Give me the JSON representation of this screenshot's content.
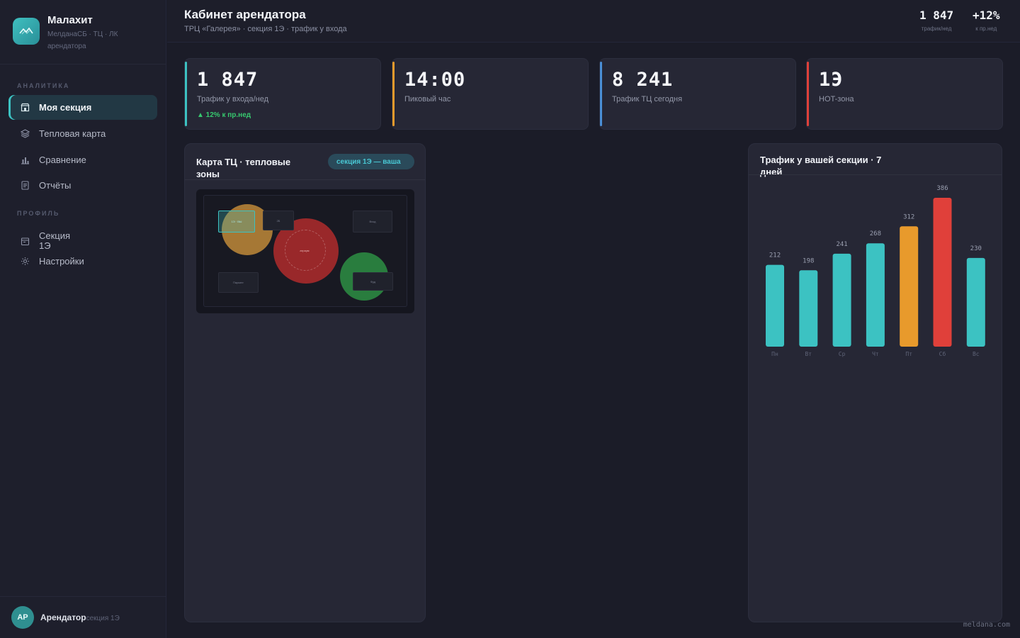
{
  "brand": {
    "name": "Малахит",
    "subtitle": "МелданаСБ · ТЦ · ЛК арендатора"
  },
  "sidebar": {
    "section_analytics": "АНАЛИТИКА",
    "section_profile": "ПРОФИЛЬ",
    "items": [
      {
        "label": "Моя секция",
        "icon": "store-icon",
        "active": true
      },
      {
        "label": "Тепловая карта",
        "icon": "layers-icon"
      },
      {
        "label": "Сравнение",
        "icon": "bar-chart-icon"
      },
      {
        "label": "Отчёты",
        "icon": "document-icon"
      },
      {
        "label": "Секция 1Э",
        "icon": "storefront-icon"
      },
      {
        "label": "Настройки",
        "icon": "gear-icon"
      }
    ],
    "user": {
      "initials": "АР",
      "name": "Арендатор",
      "section": "секция 1Э"
    }
  },
  "header": {
    "title": "Кабинет арендатора",
    "subtitle": "ТРЦ «Галерея» · секция 1Э · трафик у входа",
    "stats": [
      {
        "value": "1 847",
        "label": "трафик/нед"
      },
      {
        "value": "+12%",
        "label": "к пр.нед"
      }
    ]
  },
  "kpis": [
    {
      "value": "1 847",
      "label": "Трафик у входа/нед",
      "delta": "▲ 12% к пр.нед",
      "color": "#3cc2c2"
    },
    {
      "value": "14:00",
      "label": "Пиковый час",
      "color": "#e89a2c"
    },
    {
      "value": "8 241",
      "label": "Трафик ТЦ сегодня",
      "color": "#4a8fd6"
    },
    {
      "value": "1Э",
      "label": "HOT-зона",
      "color": "#e0403a"
    }
  ],
  "map_panel": {
    "title": "Карта ТЦ · тепловые зоны",
    "badge": "секция 1Э — ваша",
    "labels": {
      "yours": "1Э · ВЫ",
      "s2": "2Б",
      "entrance": "Вход",
      "center": "атриум",
      "parking": "Паркинг",
      "food": "Фуд"
    }
  },
  "chart_panel": {
    "title": "Трафик у вашей секции · 7 дней"
  },
  "chart_data": {
    "type": "bar",
    "title": "Трафик у вашей секции · 7 дней",
    "categories": [
      "Пн",
      "Вт",
      "Ср",
      "Чт",
      "Пт",
      "Сб",
      "Вс"
    ],
    "values": [
      212,
      198,
      241,
      268,
      312,
      386,
      230
    ],
    "colors": [
      "#3cc2c2",
      "#3cc2c2",
      "#3cc2c2",
      "#3cc2c2",
      "#e89a2c",
      "#e0403a",
      "#3cc2c2"
    ],
    "ylim": [
      0,
      400
    ],
    "grid": false
  },
  "watermark": "meldana.com"
}
